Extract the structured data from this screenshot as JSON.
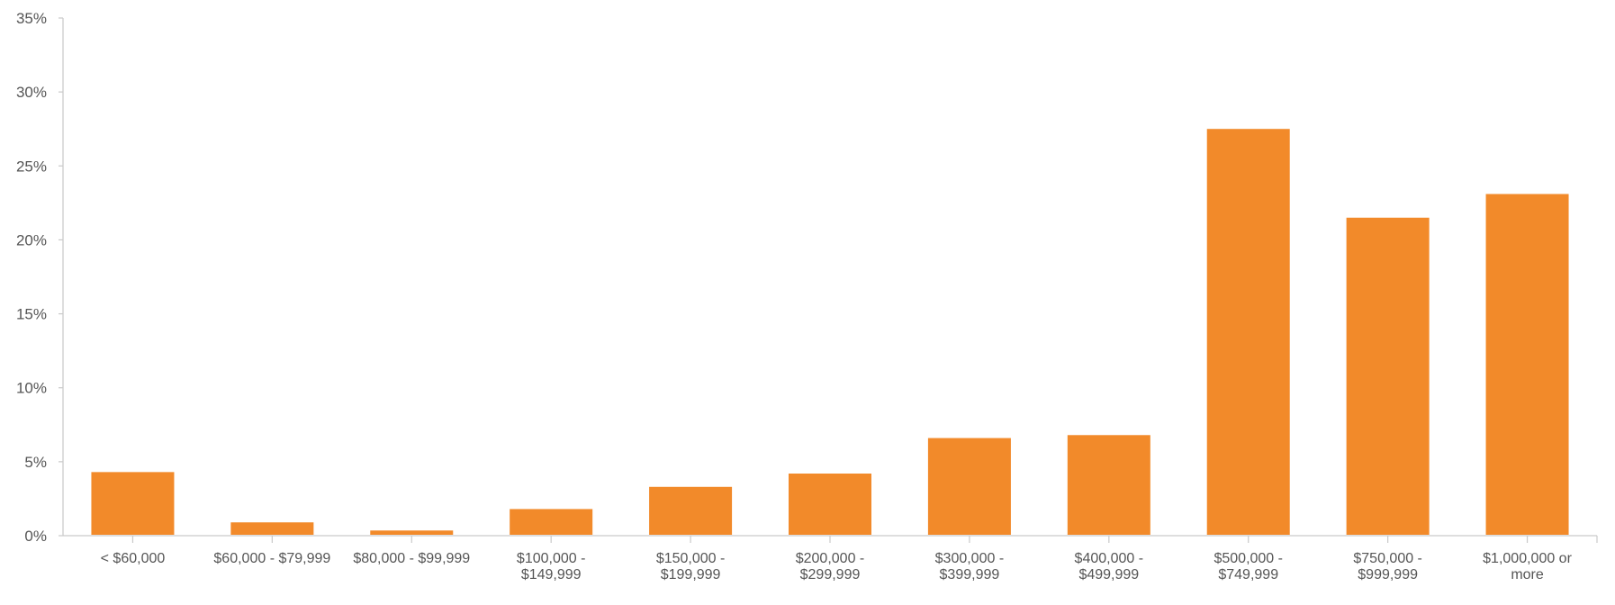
{
  "chart_data": {
    "type": "bar",
    "title": "",
    "xlabel": "",
    "ylabel": "",
    "categories": [
      [
        "< $60,000"
      ],
      [
        "$60,000 - $79,999"
      ],
      [
        "$80,000 - $99,999"
      ],
      [
        "$100,000 -",
        "$149,999"
      ],
      [
        "$150,000 -",
        "$199,999"
      ],
      [
        "$200,000 -",
        "$299,999"
      ],
      [
        "$300,000 -",
        "$399,999"
      ],
      [
        "$400,000 -",
        "$499,999"
      ],
      [
        "$500,000 -",
        "$749,999"
      ],
      [
        "$750,000 -",
        "$999,999"
      ],
      [
        "$1,000,000 or",
        "more"
      ]
    ],
    "values": [
      4.3,
      0.9,
      0.35,
      1.8,
      3.3,
      4.2,
      6.6,
      6.8,
      27.5,
      21.5,
      23.1
    ],
    "ylim": [
      0,
      35
    ],
    "yticks": [
      0,
      5,
      10,
      15,
      20,
      25,
      30,
      35
    ],
    "ytick_labels": [
      "0%",
      "5%",
      "10%",
      "15%",
      "20%",
      "25%",
      "30%",
      "35%"
    ],
    "grid": false,
    "legend": "none",
    "bar_color": "#f28a2a",
    "axis_color": "#c9c9c9",
    "label_color": "#555555"
  }
}
